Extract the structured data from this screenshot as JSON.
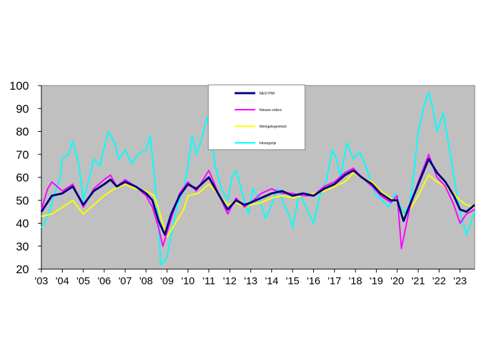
{
  "chart_data": {
    "type": "line",
    "title": "",
    "xlabel": "",
    "ylabel": "",
    "ylim": [
      20,
      100
    ],
    "xlim": [
      2003,
      2023.7
    ],
    "grid": false,
    "yticks": [
      20,
      30,
      40,
      50,
      60,
      70,
      80,
      90,
      100
    ],
    "xtick_labels": [
      "'03",
      "'04",
      "'05",
      "'06",
      "'07",
      "'08",
      "'09",
      "'10",
      "'11",
      "'12",
      "'13",
      "'14",
      "'15",
      "'16",
      "'17",
      "'18",
      "'19",
      "'20",
      "'21",
      "'22",
      "'23"
    ],
    "xtick_values": [
      2003,
      2004,
      2005,
      2006,
      2007,
      2008,
      2009,
      2010,
      2011,
      2012,
      2013,
      2014,
      2015,
      2016,
      2017,
      2018,
      2019,
      2020,
      2021,
      2022,
      2023
    ],
    "background_color": "#c0c0c0",
    "legend_position": "top-center",
    "series": [
      {
        "name": "NEVI PMI",
        "color": "#000080",
        "points": [
          [
            2003.0,
            45
          ],
          [
            2003.5,
            52
          ],
          [
            2004.0,
            53
          ],
          [
            2004.5,
            56
          ],
          [
            2005.0,
            48
          ],
          [
            2005.5,
            54
          ],
          [
            2006.0,
            57
          ],
          [
            2006.3,
            59
          ],
          [
            2006.6,
            56
          ],
          [
            2007.0,
            58
          ],
          [
            2007.5,
            56
          ],
          [
            2008.0,
            53
          ],
          [
            2008.3,
            50
          ],
          [
            2008.6,
            41
          ],
          [
            2008.9,
            35
          ],
          [
            2009.2,
            44
          ],
          [
            2009.6,
            52
          ],
          [
            2010.0,
            57
          ],
          [
            2010.4,
            55
          ],
          [
            2011.0,
            60
          ],
          [
            2011.5,
            52
          ],
          [
            2011.9,
            46
          ],
          [
            2012.3,
            50
          ],
          [
            2012.7,
            48
          ],
          [
            2013.0,
            49
          ],
          [
            2013.5,
            51
          ],
          [
            2014.0,
            53
          ],
          [
            2014.5,
            54
          ],
          [
            2015.0,
            52
          ],
          [
            2015.5,
            53
          ],
          [
            2016.0,
            52
          ],
          [
            2016.5,
            55
          ],
          [
            2017.0,
            57
          ],
          [
            2017.5,
            61
          ],
          [
            2017.9,
            63
          ],
          [
            2018.3,
            60
          ],
          [
            2018.8,
            57
          ],
          [
            2019.2,
            53
          ],
          [
            2019.7,
            50
          ],
          [
            2020.0,
            50
          ],
          [
            2020.3,
            41
          ],
          [
            2020.6,
            48
          ],
          [
            2021.0,
            57
          ],
          [
            2021.5,
            68
          ],
          [
            2021.9,
            62
          ],
          [
            2022.3,
            58
          ],
          [
            2022.7,
            52
          ],
          [
            2023.0,
            46
          ],
          [
            2023.3,
            45
          ],
          [
            2023.7,
            48
          ]
        ]
      },
      {
        "name": "Nieuwe orders",
        "color": "#ff00ff",
        "points": [
          [
            2003.0,
            46
          ],
          [
            2003.3,
            55
          ],
          [
            2003.5,
            58
          ],
          [
            2004.0,
            54
          ],
          [
            2004.5,
            57
          ],
          [
            2005.0,
            47
          ],
          [
            2005.5,
            55
          ],
          [
            2006.0,
            59
          ],
          [
            2006.3,
            61
          ],
          [
            2006.6,
            56
          ],
          [
            2007.0,
            59
          ],
          [
            2007.5,
            56
          ],
          [
            2008.0,
            52
          ],
          [
            2008.3,
            47
          ],
          [
            2008.6,
            38
          ],
          [
            2008.8,
            30
          ],
          [
            2009.2,
            42
          ],
          [
            2009.6,
            53
          ],
          [
            2010.0,
            58
          ],
          [
            2010.4,
            54
          ],
          [
            2011.0,
            63
          ],
          [
            2011.5,
            52
          ],
          [
            2011.9,
            44
          ],
          [
            2012.3,
            51
          ],
          [
            2012.7,
            47
          ],
          [
            2013.0,
            49
          ],
          [
            2013.5,
            53
          ],
          [
            2014.0,
            55
          ],
          [
            2014.5,
            53
          ],
          [
            2015.0,
            53
          ],
          [
            2015.5,
            52
          ],
          [
            2016.0,
            52
          ],
          [
            2016.5,
            56
          ],
          [
            2017.0,
            58
          ],
          [
            2017.5,
            62
          ],
          [
            2017.9,
            64
          ],
          [
            2018.3,
            60
          ],
          [
            2018.8,
            56
          ],
          [
            2019.2,
            52
          ],
          [
            2019.7,
            49
          ],
          [
            2020.0,
            52
          ],
          [
            2020.2,
            29
          ],
          [
            2020.6,
            47
          ],
          [
            2021.0,
            58
          ],
          [
            2021.5,
            70
          ],
          [
            2021.9,
            60
          ],
          [
            2022.3,
            56
          ],
          [
            2022.7,
            48
          ],
          [
            2023.0,
            40
          ],
          [
            2023.3,
            44
          ],
          [
            2023.7,
            46
          ]
        ]
      },
      {
        "name": "Werkgelegenheid",
        "color": "#ffff00",
        "points": [
          [
            2003.0,
            43
          ],
          [
            2003.5,
            44
          ],
          [
            2004.0,
            47
          ],
          [
            2004.5,
            50
          ],
          [
            2005.0,
            44
          ],
          [
            2005.5,
            48
          ],
          [
            2006.0,
            52
          ],
          [
            2006.5,
            55
          ],
          [
            2007.0,
            57
          ],
          [
            2007.5,
            55
          ],
          [
            2008.0,
            54
          ],
          [
            2008.4,
            52
          ],
          [
            2008.8,
            40
          ],
          [
            2009.0,
            34
          ],
          [
            2009.4,
            40
          ],
          [
            2009.8,
            46
          ],
          [
            2010.0,
            52
          ],
          [
            2010.5,
            53
          ],
          [
            2011.0,
            57
          ],
          [
            2011.5,
            52
          ],
          [
            2011.9,
            48
          ],
          [
            2012.3,
            49
          ],
          [
            2012.7,
            47
          ],
          [
            2013.0,
            48
          ],
          [
            2013.5,
            49
          ],
          [
            2014.0,
            51
          ],
          [
            2014.5,
            52
          ],
          [
            2015.0,
            51
          ],
          [
            2015.5,
            52
          ],
          [
            2016.0,
            53
          ],
          [
            2016.5,
            54
          ],
          [
            2017.0,
            56
          ],
          [
            2017.5,
            58
          ],
          [
            2017.9,
            62
          ],
          [
            2018.3,
            60
          ],
          [
            2018.8,
            58
          ],
          [
            2019.2,
            54
          ],
          [
            2019.7,
            51
          ],
          [
            2020.0,
            49
          ],
          [
            2020.3,
            43
          ],
          [
            2020.6,
            46
          ],
          [
            2021.0,
            52
          ],
          [
            2021.5,
            61
          ],
          [
            2021.9,
            58
          ],
          [
            2022.3,
            56
          ],
          [
            2022.7,
            53
          ],
          [
            2023.0,
            50
          ],
          [
            2023.3,
            48
          ],
          [
            2023.7,
            47
          ]
        ]
      },
      {
        "name": "Inkoopprijs",
        "color": "#00ffff",
        "points": [
          [
            2003.0,
            38
          ],
          [
            2003.3,
            43
          ],
          [
            2003.6,
            52
          ],
          [
            2003.9,
            60
          ],
          [
            2004.0,
            68
          ],
          [
            2004.3,
            70
          ],
          [
            2004.5,
            76
          ],
          [
            2004.8,
            65
          ],
          [
            2005.0,
            50
          ],
          [
            2005.3,
            60
          ],
          [
            2005.5,
            68
          ],
          [
            2005.8,
            65
          ],
          [
            2006.0,
            73
          ],
          [
            2006.2,
            80
          ],
          [
            2006.5,
            75
          ],
          [
            2006.7,
            68
          ],
          [
            2007.0,
            72
          ],
          [
            2007.3,
            66
          ],
          [
            2007.6,
            70
          ],
          [
            2008.0,
            72
          ],
          [
            2008.2,
            78
          ],
          [
            2008.4,
            60
          ],
          [
            2008.6,
            40
          ],
          [
            2008.7,
            22
          ],
          [
            2009.0,
            25
          ],
          [
            2009.2,
            35
          ],
          [
            2009.5,
            48
          ],
          [
            2009.8,
            55
          ],
          [
            2010.0,
            65
          ],
          [
            2010.2,
            78
          ],
          [
            2010.4,
            70
          ],
          [
            2010.6,
            75
          ],
          [
            2010.9,
            86
          ],
          [
            2011.1,
            80
          ],
          [
            2011.3,
            65
          ],
          [
            2011.6,
            55
          ],
          [
            2011.9,
            50
          ],
          [
            2012.1,
            60
          ],
          [
            2012.3,
            63
          ],
          [
            2012.6,
            53
          ],
          [
            2012.9,
            44
          ],
          [
            2013.1,
            55
          ],
          [
            2013.4,
            51
          ],
          [
            2013.7,
            42
          ],
          [
            2014.0,
            48
          ],
          [
            2014.3,
            55
          ],
          [
            2014.6,
            48
          ],
          [
            2014.9,
            42
          ],
          [
            2015.0,
            38
          ],
          [
            2015.3,
            53
          ],
          [
            2015.6,
            48
          ],
          [
            2015.9,
            42
          ],
          [
            2016.0,
            40
          ],
          [
            2016.3,
            52
          ],
          [
            2016.6,
            58
          ],
          [
            2016.9,
            72
          ],
          [
            2017.1,
            68
          ],
          [
            2017.3,
            60
          ],
          [
            2017.6,
            75
          ],
          [
            2017.9,
            68
          ],
          [
            2018.2,
            71
          ],
          [
            2018.5,
            65
          ],
          [
            2018.8,
            56
          ],
          [
            2019.0,
            52
          ],
          [
            2019.3,
            50
          ],
          [
            2019.6,
            47
          ],
          [
            2019.9,
            53
          ],
          [
            2020.1,
            48
          ],
          [
            2020.3,
            44
          ],
          [
            2020.6,
            48
          ],
          [
            2020.8,
            62
          ],
          [
            2021.0,
            80
          ],
          [
            2021.3,
            92
          ],
          [
            2021.5,
            97
          ],
          [
            2021.7,
            90
          ],
          [
            2021.9,
            80
          ],
          [
            2022.2,
            88
          ],
          [
            2022.5,
            72
          ],
          [
            2022.8,
            55
          ],
          [
            2023.0,
            45
          ],
          [
            2023.3,
            35
          ],
          [
            2023.5,
            40
          ],
          [
            2023.7,
            45
          ]
        ]
      }
    ]
  }
}
